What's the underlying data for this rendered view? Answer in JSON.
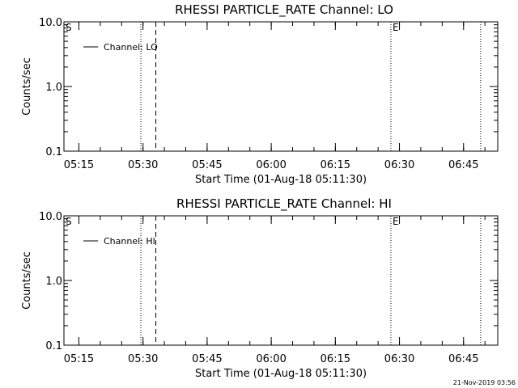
{
  "timestamp": "21-Nov-2019 03:56",
  "chart_data": [
    {
      "type": "line",
      "title": "RHESSI PARTICLE_RATE Channel: LO",
      "xlabel": "Start Time (01-Aug-18 05:11:30)",
      "ylabel": "Counts/sec",
      "y_scale": "log",
      "ylim": [
        0.1,
        10.0
      ],
      "y_ticks": [
        "0.1",
        "1.0",
        "10.0"
      ],
      "xlim": [
        "05:11:30",
        "06:53:00"
      ],
      "x_ticks": [
        "05:15",
        "05:30",
        "05:45",
        "06:00",
        "06:15",
        "06:30",
        "06:45"
      ],
      "legend_position": "top-left",
      "series": [
        {
          "name": "Channel: LO",
          "values": []
        }
      ],
      "markers": [
        {
          "label": "S",
          "time": "05:11:30",
          "style": "dotted"
        },
        {
          "label": "",
          "time": "05:29:30",
          "style": "dotted"
        },
        {
          "label": "",
          "time": "05:33:00",
          "style": "dashed"
        },
        {
          "label": "E",
          "time": "06:28:00",
          "style": "dotted"
        },
        {
          "label": "",
          "time": "06:49:00",
          "style": "dotted"
        }
      ]
    },
    {
      "type": "line",
      "title": "RHESSI PARTICLE_RATE Channel: HI",
      "xlabel": "Start Time (01-Aug-18 05:11:30)",
      "ylabel": "Counts/sec",
      "y_scale": "log",
      "ylim": [
        0.1,
        10.0
      ],
      "y_ticks": [
        "0.1",
        "1.0",
        "10.0"
      ],
      "xlim": [
        "05:11:30",
        "06:53:00"
      ],
      "x_ticks": [
        "05:15",
        "05:30",
        "05:45",
        "06:00",
        "06:15",
        "06:30",
        "06:45"
      ],
      "legend_position": "top-left",
      "series": [
        {
          "name": "Channel: HI",
          "values": []
        }
      ],
      "markers": [
        {
          "label": "S",
          "time": "05:11:30",
          "style": "dotted"
        },
        {
          "label": "",
          "time": "05:29:30",
          "style": "dotted"
        },
        {
          "label": "",
          "time": "05:33:00",
          "style": "dashed"
        },
        {
          "label": "E",
          "time": "06:28:00",
          "style": "dotted"
        },
        {
          "label": "",
          "time": "06:49:00",
          "style": "dotted"
        }
      ]
    }
  ]
}
